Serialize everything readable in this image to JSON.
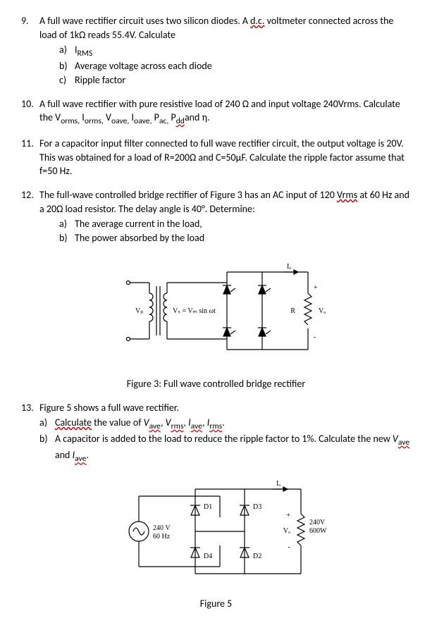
{
  "questions": [
    {
      "num": "9.",
      "text_before": "A full wave rectifier circuit uses two silicon diodes. A ",
      "wavy": "d.c.",
      "text_after": " voltmeter connected across the load of 1kΩ reads 55.4V. Calculate",
      "sub": [
        {
          "label": "a)",
          "text": "I",
          "sub_text": "RMS"
        },
        {
          "label": "b)",
          "text": "Average voltage across each diode"
        },
        {
          "label": "c)",
          "text": "Ripple factor"
        }
      ]
    },
    {
      "num": "10.",
      "text_parts": [
        {
          "t": "A full wave rectifier with pure resistive load of 240 Ω and input voltage 240Vrms. Calculate the V"
        },
        {
          "t": "orms,",
          "sub": true
        },
        {
          "t": " I"
        },
        {
          "t": "orms,",
          "sub": true
        },
        {
          "t": " V"
        },
        {
          "t": "oave,",
          "sub": true
        },
        {
          "t": " I"
        },
        {
          "t": "oave,",
          "sub": true
        },
        {
          "t": " P"
        },
        {
          "t": "ac,",
          "sub": true
        },
        {
          "t": " P"
        },
        {
          "t": "dd",
          "sub": true,
          "wavy": true
        },
        {
          "t": "and η."
        }
      ]
    },
    {
      "num": "11.",
      "text": "For a capacitor input filter connected to full wave rectifier circuit, the output voltage is 20V. This was obtained for a load of R=200Ω and C=50µF. Calculate the ripple factor assume that f=50 Hz."
    },
    {
      "num": "12.",
      "text_parts": [
        {
          "t": "The full-wave controlled bridge rectifier of Figure 3 has an AC input of 120 "
        },
        {
          "t": "Vrms",
          "wavy": true
        },
        {
          "t": " at 60 Hz and a 20Ω load resistor. The delay angle is 40°. Determine:"
        }
      ],
      "sub": [
        {
          "label": "a)",
          "text": "The average current in the load,"
        },
        {
          "label": "b)",
          "text": "The power absorbed by the load"
        }
      ]
    },
    {
      "num": "13.",
      "text": "Figure 5 shows a full wave rectifier.",
      "sub": [
        {
          "label": "a)",
          "text_parts": [
            {
              "t": "Calculate",
              "wavy": true
            },
            {
              "t": " the value of "
            },
            {
              "t": "V",
              "i": true
            },
            {
              "t": "ave",
              "sub": true,
              "wavy": true
            },
            {
              "t": ", "
            },
            {
              "t": "V",
              "i": true
            },
            {
              "t": "rms",
              "sub": true,
              "wavy": true
            },
            {
              "t": ", "
            },
            {
              "t": "I",
              "i": true
            },
            {
              "t": "ave",
              "sub": true,
              "wavy": true
            },
            {
              "t": ", "
            },
            {
              "t": "I",
              "i": true
            },
            {
              "t": "rms",
              "sub": true,
              "wavy": true
            },
            {
              "t": "."
            }
          ]
        },
        {
          "label": "b)",
          "text_parts": [
            {
              "t": "A capacitor is added to the load to reduce the ripple factor to 1%. Calculate the new "
            },
            {
              "t": "V",
              "i": true
            },
            {
              "t": "ave",
              "sub": true,
              "wavy": true
            },
            {
              "t": " and "
            },
            {
              "t": "I",
              "i": true
            },
            {
              "t": "ave",
              "sub": true,
              "wavy": true
            },
            {
              "t": "."
            }
          ]
        }
      ]
    }
  ],
  "figure3": {
    "caption": "Figure 3: Full wave controlled bridge rectifier",
    "labels": {
      "vp": "Vₚ",
      "vs": "Vₛ = Vₘ sin ωt",
      "io": "Iₒ",
      "R": "R",
      "Vo": "Vₒ",
      "plus": "+",
      "minus": "-"
    },
    "style": {
      "stroke": "#000000",
      "stroke_width": 1.2,
      "font_size": 10
    }
  },
  "figure5": {
    "caption": "Figure 5",
    "labels": {
      "src1": "240 V",
      "src2": "60 Hz",
      "D1": "D1",
      "D2": "D2",
      "D3": "D3",
      "D4": "D4",
      "Io": "Iₒ",
      "Vo": "Vₒ",
      "load1": "240V",
      "load2": "600W",
      "plus": "+",
      "minus": "-"
    },
    "style": {
      "stroke": "#000000",
      "stroke_width": 1.2,
      "font_size": 10
    }
  }
}
